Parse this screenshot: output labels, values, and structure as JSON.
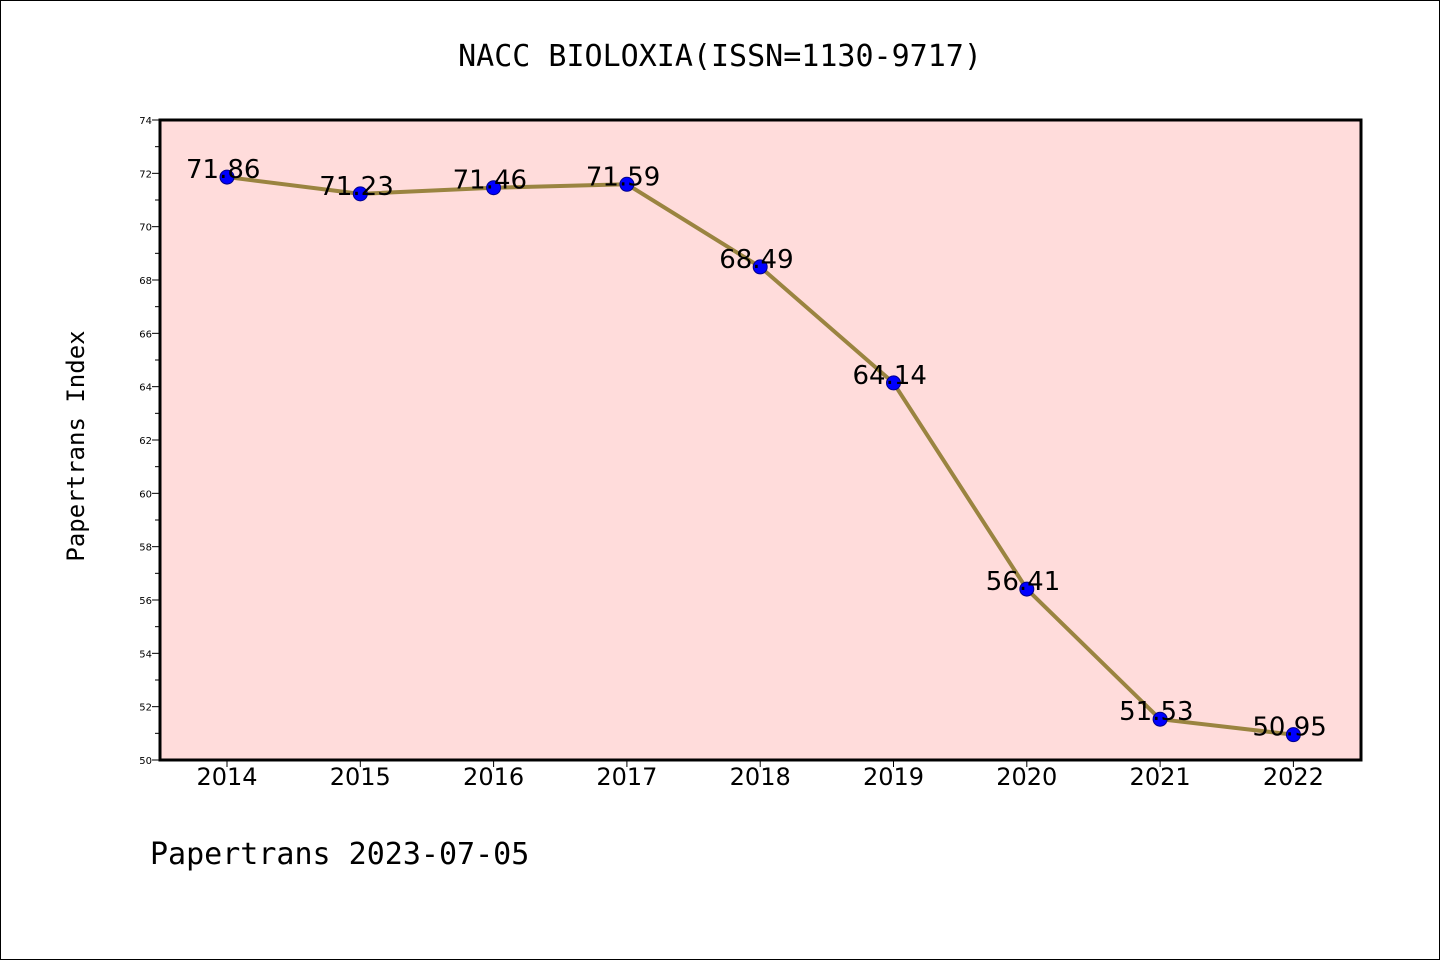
{
  "chart_data": {
    "type": "line",
    "title": "NACC BIOLOXIA(ISSN=1130-9717)",
    "ylabel": "Papertrans Index",
    "xlabel": "",
    "categories": [
      "2014",
      "2015",
      "2016",
      "2017",
      "2018",
      "2019",
      "2020",
      "2021",
      "2022"
    ],
    "values": [
      71.86,
      71.23,
      71.46,
      71.59,
      68.49,
      64.14,
      56.41,
      51.53,
      50.95
    ],
    "data_labels": [
      "71.86",
      "71.23",
      "71.46",
      "71.59",
      "68.49",
      "64.14",
      "56.41",
      "51.53",
      "50.95"
    ],
    "ylim": [
      50,
      74
    ],
    "yticks": [
      50,
      52,
      54,
      56,
      58,
      60,
      62,
      64,
      66,
      68,
      70,
      72,
      74
    ],
    "ytick_labels": [
      "50",
      "52",
      "54",
      "56",
      "58",
      "60",
      "62",
      "64",
      "66",
      "68",
      "70",
      "72",
      "74"
    ],
    "grid": false,
    "legend": "none",
    "colors": {
      "plot_background": "#ffdcdb",
      "line": "#9a8440",
      "marker": "#0000ff"
    }
  },
  "footer": "Papertrans 2023-07-05"
}
